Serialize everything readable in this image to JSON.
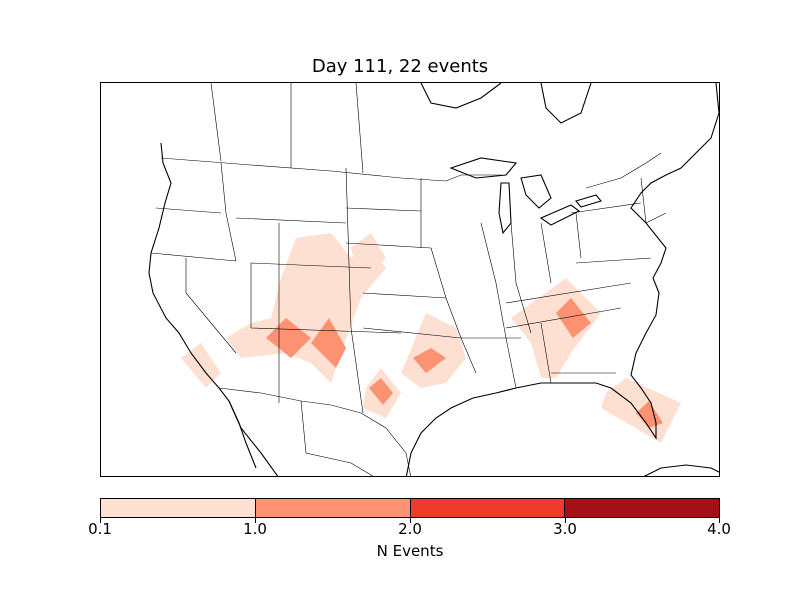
{
  "title": "Day 111, 22 events",
  "colorbar": {
    "label": "N Events",
    "ticks": [
      "0.1",
      "1.0",
      "2.0",
      "3.0",
      "4.0"
    ],
    "colors": [
      "#fee0d2",
      "#fc9272",
      "#ef3b2c",
      "#a50f15"
    ]
  },
  "map": {
    "region": "North America",
    "land_color": "#ffffff",
    "border_color": "#000000",
    "hotspots": [
      {
        "name": "central-rockies-west",
        "level": 1
      },
      {
        "name": "colorado-plateau",
        "level": 1
      },
      {
        "name": "new-mexico",
        "level": 1
      },
      {
        "name": "southern-california",
        "level": 0
      },
      {
        "name": "west-texas",
        "level": 1
      },
      {
        "name": "oklahoma",
        "level": 1
      },
      {
        "name": "tennessee-georgia",
        "level": 1
      },
      {
        "name": "florida",
        "level": 1
      }
    ]
  }
}
